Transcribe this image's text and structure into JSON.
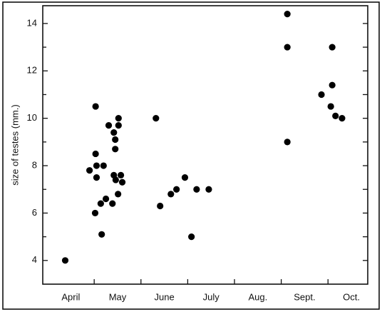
{
  "chart_data": {
    "type": "scatter",
    "y_label": "size of testes (mm.)",
    "x": [
      0.88,
      1.4,
      1.53,
      1.53,
      1.55,
      1.55,
      1.52,
      1.64,
      1.7,
      1.66,
      1.75,
      1.81,
      1.89,
      1.92,
      1.95,
      1.95,
      1.92,
      1.96,
      2.02,
      2.02,
      2.01,
      2.07,
      2.1,
      2.82,
      2.91,
      3.14,
      3.26,
      3.44,
      3.58,
      3.69,
      3.95,
      5.63,
      5.63,
      5.63,
      6.36,
      6.59,
      6.59,
      6.56,
      6.66,
      6.8
    ],
    "values": [
      4.0,
      7.8,
      10.5,
      8.5,
      8.0,
      7.5,
      6.0,
      6.4,
      8.0,
      5.1,
      6.6,
      9.7,
      6.4,
      9.4,
      9.1,
      8.7,
      7.6,
      7.4,
      10.0,
      9.7,
      6.8,
      7.6,
      7.3,
      10.0,
      6.3,
      6.8,
      7.0,
      7.5,
      5.0,
      7.0,
      7.0,
      14.4,
      13.0,
      9.0,
      11.0,
      11.4,
      13.0,
      10.5,
      10.1,
      10.0
    ],
    "color": "#000000",
    "xlim": [
      0.4,
      7.35
    ],
    "xticks": [
      {
        "value": 1,
        "label": "April"
      },
      {
        "value": 2,
        "label": "May"
      },
      {
        "value": 3,
        "label": "June"
      },
      {
        "value": 4,
        "label": "July"
      },
      {
        "value": 5,
        "label": "Aug."
      },
      {
        "value": 6,
        "label": "Sept."
      },
      {
        "value": 7,
        "label": "Oct."
      }
    ],
    "minor_xticks": [
      1.5,
      2.5,
      3.5,
      4.5,
      5.5,
      6.5
    ],
    "ylim": [
      3,
      14.75
    ],
    "yticks": [
      4,
      6,
      8,
      10,
      12,
      14
    ],
    "minor_yticks": [
      5,
      7,
      9,
      11,
      13
    ]
  }
}
